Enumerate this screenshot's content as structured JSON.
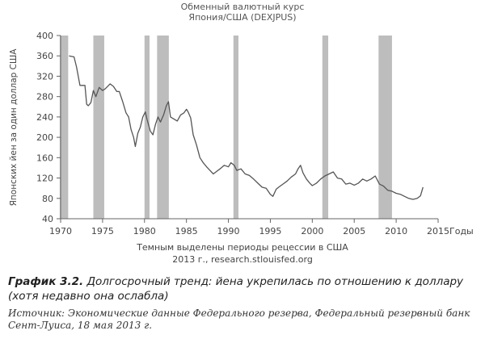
{
  "chart_data": {
    "type": "line",
    "title": "Обменный валютный курс",
    "subtitle": "Япония/США (DEXJPUS)",
    "ylabel": "Японских йен за один доллар США",
    "xlabel": "Годы",
    "xlim": [
      1970,
      2015
    ],
    "ylim": [
      40,
      400
    ],
    "xticks": [
      1970,
      1975,
      1980,
      1985,
      1990,
      1995,
      2000,
      2005,
      2010,
      2015
    ],
    "xtick_labels": [
      "1970",
      "1975",
      "1980",
      "1985",
      "1990",
      "1995",
      "2000",
      "2005",
      "2010",
      "2015"
    ],
    "yticks": [
      40,
      80,
      120,
      160,
      200,
      240,
      280,
      320,
      360,
      400
    ],
    "ytick_labels": [
      "40",
      "80",
      "120",
      "160",
      "200",
      "240",
      "280",
      "320",
      "360",
      "400"
    ],
    "grid": false,
    "recessions": [
      [
        1969.9,
        1970.9
      ],
      [
        1973.9,
        1975.2
      ],
      [
        1980.0,
        1980.6
      ],
      [
        1981.5,
        1982.9
      ],
      [
        1990.6,
        1991.2
      ],
      [
        2001.2,
        2001.9
      ],
      [
        2007.9,
        2009.5
      ]
    ],
    "recession_color": "#bdbdbd",
    "line_color": "#555555",
    "series": [
      {
        "x": [
          1971.0,
          1971.6,
          1971.9,
          1972.3,
          1972.9,
          1973.1,
          1973.3,
          1973.6,
          1973.9,
          1974.2,
          1974.6,
          1975.0,
          1975.3,
          1975.6,
          1975.9,
          1976.3,
          1976.7,
          1977.0,
          1977.4,
          1977.8,
          1978.1,
          1978.4,
          1978.7,
          1978.9,
          1979.2,
          1979.5,
          1979.8,
          1980.1,
          1980.3,
          1980.7,
          1981.0,
          1981.3,
          1981.6,
          1981.9,
          1982.3,
          1982.6,
          1982.85,
          1983.1,
          1983.5,
          1983.9,
          1984.3,
          1984.7,
          1985.0,
          1985.2,
          1985.5,
          1985.8,
          1986.2,
          1986.6,
          1987.0,
          1987.4,
          1987.8,
          1988.2,
          1988.6,
          1989.0,
          1989.5,
          1990.0,
          1990.3,
          1990.7,
          1991.0,
          1991.5,
          1992.0,
          1992.5,
          1993.0,
          1993.5,
          1994.0,
          1994.5,
          1995.0,
          1995.3,
          1995.7,
          1996.0,
          1996.5,
          1997.0,
          1997.5,
          1998.0,
          1998.3,
          1998.6,
          1998.9,
          1999.3,
          1999.7,
          2000.0,
          2000.5,
          2001.0,
          2001.5,
          2002.0,
          2002.5,
          2003.0,
          2003.5,
          2004.0,
          2004.5,
          2005.0,
          2005.5,
          2006.0,
          2006.5,
          2007.0,
          2007.5,
          2008.0,
          2008.5,
          2009.0,
          2009.5,
          2010.0,
          2010.5,
          2011.0,
          2011.5,
          2012.0,
          2012.5,
          2012.9,
          2013.2
        ],
        "y": [
          360,
          358,
          338,
          302,
          302,
          265,
          262,
          268,
          292,
          280,
          298,
          292,
          295,
          300,
          305,
          300,
          290,
          290,
          270,
          248,
          240,
          215,
          200,
          182,
          208,
          220,
          240,
          250,
          235,
          212,
          205,
          225,
          240,
          230,
          245,
          262,
          270,
          240,
          236,
          232,
          244,
          248,
          255,
          250,
          238,
          205,
          185,
          160,
          150,
          142,
          135,
          128,
          133,
          138,
          145,
          142,
          150,
          145,
          135,
          138,
          128,
          125,
          118,
          110,
          102,
          100,
          88,
          84,
          98,
          102,
          108,
          114,
          122,
          128,
          138,
          145,
          130,
          118,
          110,
          105,
          110,
          118,
          124,
          128,
          132,
          120,
          118,
          108,
          110,
          106,
          110,
          118,
          114,
          118,
          124,
          108,
          104,
          96,
          94,
          90,
          88,
          84,
          80,
          78,
          80,
          85,
          102
        ]
      }
    ]
  },
  "notes": {
    "line1": "Темным выделены периоды рецессии в США",
    "line2": "2013 г., research.stlouisfed.org"
  },
  "caption": {
    "label": "График 3.2.",
    "text": "Долгосрочный тренд: йена укрепилась по отношению к доллару (хотя недавно она ослабла)"
  },
  "source": "Источник: Экономические данные Федерального резерва, Федеральный резервный банк Сент-Луиса, 18 мая 2013 г."
}
